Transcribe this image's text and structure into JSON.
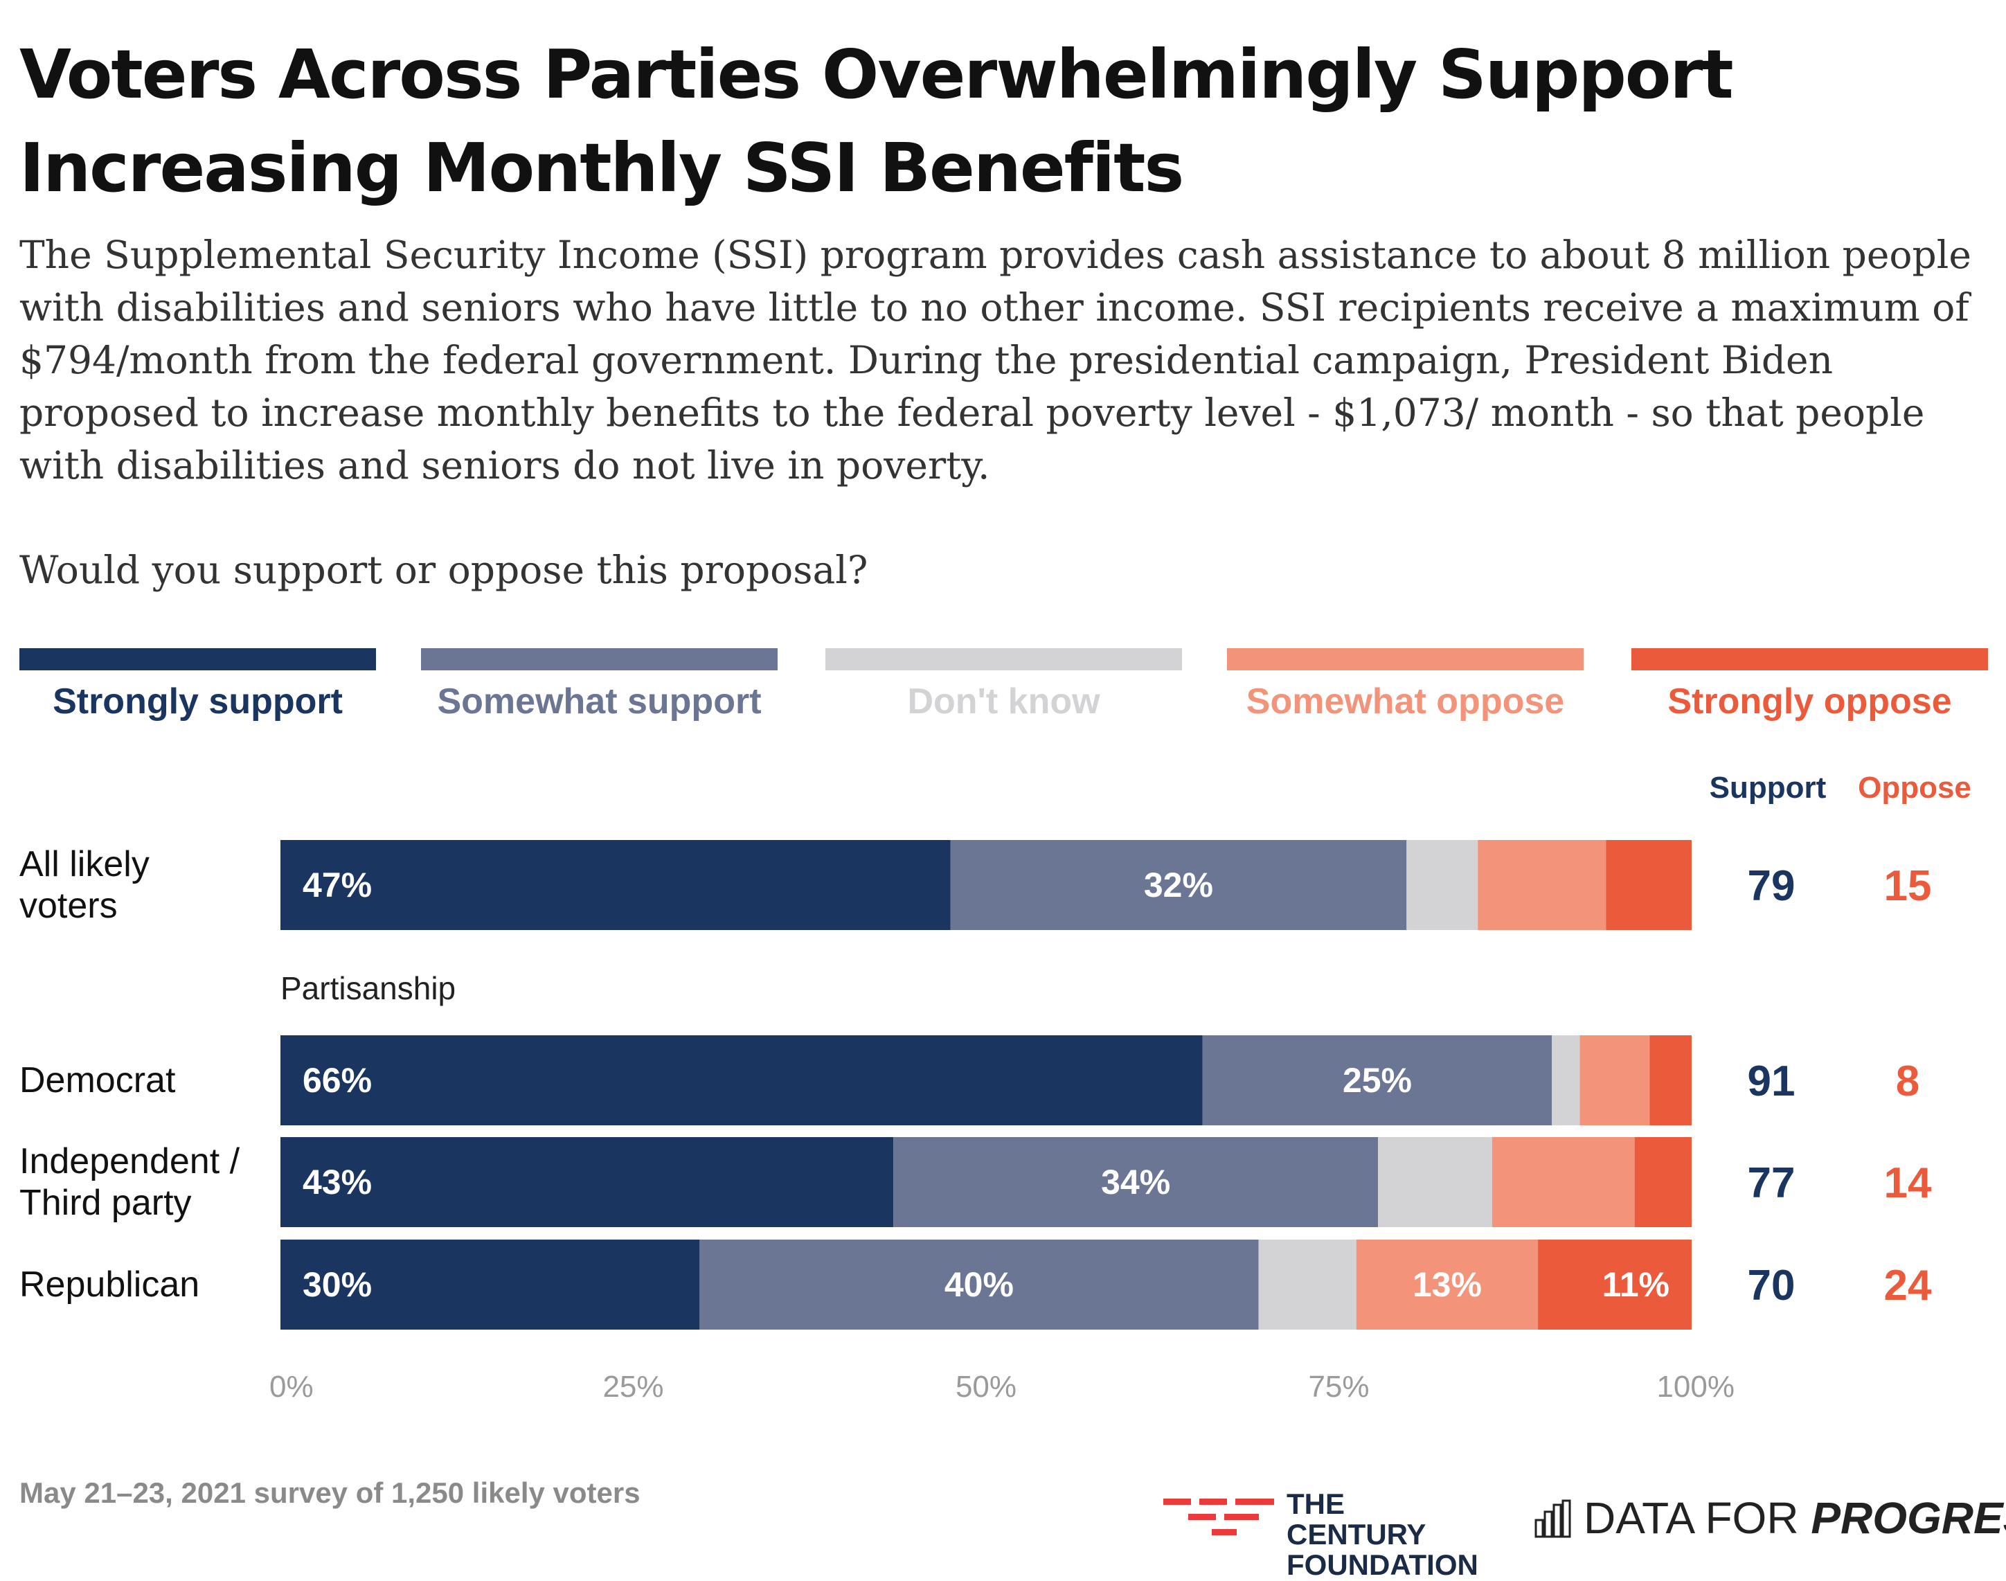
{
  "title_lines": [
    "Voters Across Parties Overwhelmingly Support",
    "Increasing Monthly SSI Benefits"
  ],
  "subtitle_lines": [
    "The Supplemental Security Income (SSI) program provides cash assistance to about 8 million people",
    "with disabilities and seniors who have little to no other income. SSI recipients receive a maximum of",
    "$794/month from the federal government. During the presidential campaign, President Biden",
    "proposed to increase monthly benefits to the federal poverty level - $1,073/ month - so that people",
    "with disabilities and seniors do not live in poverty."
  ],
  "question": "Would you support or oppose this proposal?",
  "colors": {
    "strongly_support": "#1a3560",
    "somewhat_support": "#6b7594",
    "dont_know": "#d3d3d5",
    "somewhat_oppose": "#f39379",
    "strongly_oppose": "#ec5a3c",
    "support_total": "#1a3560",
    "oppose_total": "#ec5a3c",
    "axis_text": "#9a9a9a"
  },
  "chart_data": {
    "type": "bar",
    "orientation": "horizontal",
    "stacked": true,
    "legend": [
      {
        "key": "strongly_support",
        "label": "Strongly support"
      },
      {
        "key": "somewhat_support",
        "label": "Somewhat support"
      },
      {
        "key": "dont_know",
        "label": "Don't know"
      },
      {
        "key": "somewhat_oppose",
        "label": "Somewhat oppose"
      },
      {
        "key": "strongly_oppose",
        "label": "Strongly oppose"
      }
    ],
    "section_label": "Partisanship",
    "totals_headers": {
      "support": "Support",
      "oppose": "Oppose"
    },
    "categories": [
      {
        "label_lines": [
          "All likely",
          "voters"
        ],
        "values": [
          47,
          32,
          5,
          9,
          6
        ],
        "value_labels": [
          "47%",
          "32%",
          "",
          "",
          ""
        ],
        "support": "79",
        "oppose": "15"
      },
      {
        "label_lines": [
          "Democrat"
        ],
        "values": [
          66,
          25,
          2,
          5,
          3
        ],
        "value_labels": [
          "66%",
          "25%",
          "",
          "",
          ""
        ],
        "support": "91",
        "oppose": "8"
      },
      {
        "label_lines": [
          "Independent /",
          "Third party"
        ],
        "values": [
          43,
          34,
          8,
          10,
          4
        ],
        "value_labels": [
          "43%",
          "34%",
          "",
          "",
          ""
        ],
        "support": "77",
        "oppose": "14"
      },
      {
        "label_lines": [
          "Republican"
        ],
        "values": [
          30,
          40,
          7,
          13,
          11
        ],
        "value_labels": [
          "30%",
          "40%",
          "",
          "13%",
          "11%"
        ],
        "support": "70",
        "oppose": "24"
      }
    ],
    "xlim": [
      0,
      100
    ],
    "x_ticks": [
      {
        "value": 0,
        "label": "0%"
      },
      {
        "value": 25,
        "label": "25%"
      },
      {
        "value": 50,
        "label": "50%"
      },
      {
        "value": 75,
        "label": "75%"
      },
      {
        "value": 100,
        "label": "100%"
      }
    ]
  },
  "footer": {
    "note": "May 21–23, 2021 survey of 1,250 likely voters",
    "tcf_lines": [
      "THE CENTURY",
      "FOUNDATION"
    ],
    "dfp_plain": "DATA FOR ",
    "dfp_bold": "PROGRESS"
  }
}
